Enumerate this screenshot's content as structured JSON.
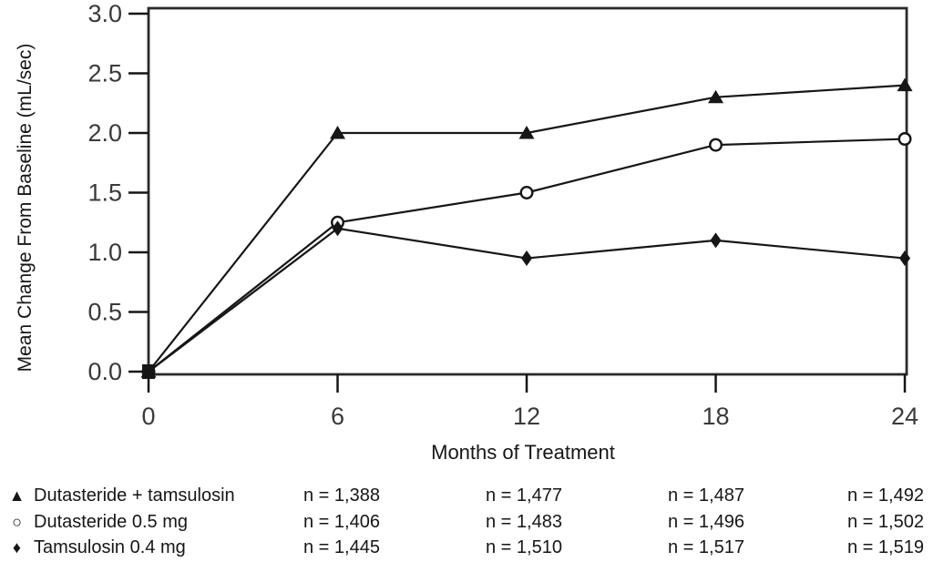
{
  "figure": {
    "background": "#ffffff",
    "line_color": "#161616",
    "border_color": "#2a2a2a",
    "tick_label_color": "#3a3a3a",
    "marker_fill": "#161616",
    "open_marker_fill": "#ffffff"
  },
  "chart_data": {
    "type": "line",
    "title": "",
    "xlabel": "Months of Treatment",
    "ylabel": "Mean Change From Baseline (mL/sec)",
    "x": [
      0,
      6,
      12,
      18,
      24
    ],
    "xtick_labels": [
      "0",
      "6",
      "12",
      "18",
      "24"
    ],
    "ytick_values": [
      0.0,
      0.5,
      1.0,
      1.5,
      2.0,
      2.5,
      3.0
    ],
    "ytick_labels": [
      "0.0",
      "0.5",
      "1.0",
      "1.5",
      "2.0",
      "2.5",
      "3.0"
    ],
    "xlim": [
      0,
      24
    ],
    "ylim": [
      0,
      3.0
    ],
    "grid": false,
    "legend_position": "bottom-left",
    "n_visit_months": [
      6,
      12,
      18,
      24
    ],
    "series": [
      {
        "name": "Dutasteride + tamsulosin",
        "marker": "filled-triangle",
        "marker_glyph": "▲",
        "values": [
          0,
          2.0,
          2.0,
          2.3,
          2.4
        ],
        "n_by_visit": [
          "n = 1,388",
          "n = 1,477",
          "n = 1,487",
          "n = 1,492"
        ]
      },
      {
        "name": "Dutasteride 0.5 mg",
        "marker": "open-circle",
        "marker_glyph": "○",
        "values": [
          0,
          1.25,
          1.5,
          1.9,
          1.95
        ],
        "n_by_visit": [
          "n = 1,406",
          "n = 1,483",
          "n = 1,496",
          "n = 1,502"
        ]
      },
      {
        "name": "Tamsulosin 0.4 mg",
        "marker": "filled-diamond",
        "marker_glyph": "♦",
        "values": [
          0,
          1.2,
          0.95,
          1.1,
          0.95
        ],
        "n_by_visit": [
          "n = 1,445",
          "n = 1,510",
          "n = 1,517",
          "n = 1,519"
        ]
      }
    ]
  }
}
